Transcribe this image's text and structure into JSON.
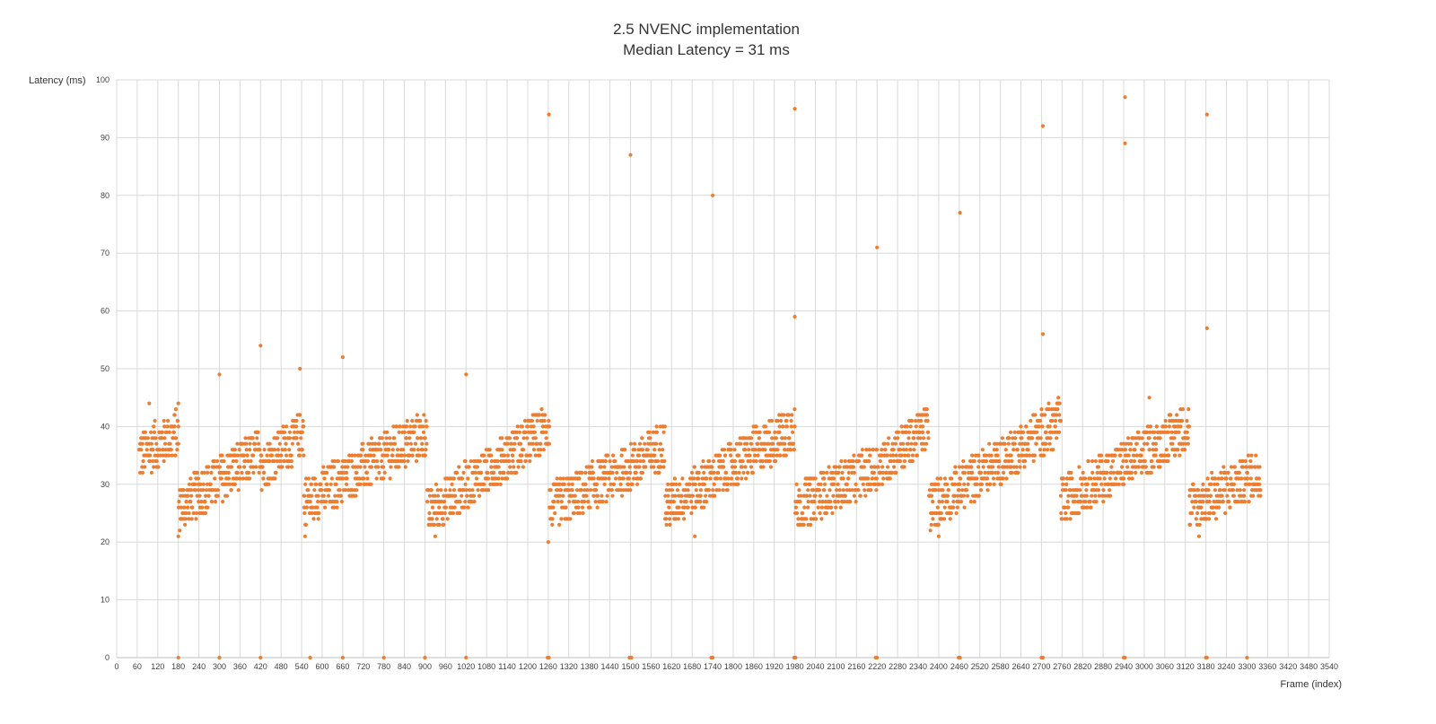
{
  "colors": {
    "marker": "#ED7D31",
    "grid": "#D9D9D9",
    "text": "#404040"
  },
  "chart_data": {
    "type": "scatter",
    "title": [
      "2.5 NVENC implementation",
      "Median Latency = 31 ms"
    ],
    "xlabel": "Frame (index)",
    "ylabel": "Latency (ms)",
    "xlim": [
      0,
      3540
    ],
    "ylim": [
      0,
      100
    ],
    "x_ticks": [
      0,
      60,
      120,
      180,
      240,
      300,
      360,
      420,
      480,
      540,
      600,
      660,
      720,
      780,
      840,
      900,
      960,
      1020,
      1080,
      1140,
      1200,
      1260,
      1320,
      1380,
      1440,
      1500,
      1560,
      1620,
      1680,
      1740,
      1800,
      1860,
      1920,
      1980,
      2040,
      2100,
      2160,
      2220,
      2280,
      2340,
      2400,
      2460,
      2520,
      2580,
      2640,
      2700,
      2760,
      2820,
      2880,
      2940,
      3000,
      3060,
      3120,
      3180,
      3240,
      3300,
      3360,
      3420,
      3480,
      3540
    ],
    "y_ticks": [
      0,
      10,
      20,
      30,
      40,
      50,
      60,
      70,
      80,
      90,
      100
    ],
    "grid": true,
    "series": [
      {
        "color": "#ED7D31",
        "summary": "Sawtooth pattern: latency rises from ~24-30 ms to ~38-44 ms in repeated cycles of roughly 240 frames, with sparse zero-latency points and outliers.",
        "cycles": [
          {
            "x0": 65,
            "x1": 180,
            "y0": 35,
            "y1": 39
          },
          {
            "x0": 181,
            "x1": 422,
            "y0": 26,
            "y1": 36
          },
          {
            "x0": 423,
            "x1": 545,
            "y0": 33,
            "y1": 39
          },
          {
            "x0": 546,
            "x1": 905,
            "y0": 27,
            "y1": 39
          },
          {
            "x0": 906,
            "x1": 1262,
            "y0": 25,
            "y1": 40
          },
          {
            "x0": 1263,
            "x1": 1500,
            "y0": 26,
            "y1": 33
          },
          {
            "x0": 1501,
            "x1": 1600,
            "y0": 33,
            "y1": 37
          },
          {
            "x0": 1601,
            "x1": 1980,
            "y0": 26,
            "y1": 40
          },
          {
            "x0": 1981,
            "x1": 2220,
            "y0": 26,
            "y1": 33
          },
          {
            "x0": 2221,
            "x1": 2370,
            "y0": 33,
            "y1": 40
          },
          {
            "x0": 2371,
            "x1": 2755,
            "y0": 26,
            "y1": 41
          },
          {
            "x0": 2756,
            "x1": 3130,
            "y0": 27,
            "y1": 40
          },
          {
            "x0": 3131,
            "x1": 3340,
            "y0": 26,
            "y1": 32
          }
        ],
        "zeros": [
          180,
          300,
          420,
          565,
          660,
          780,
          900,
          1020,
          1258,
          1262,
          1497,
          1500,
          1503,
          1736,
          1740,
          1978,
          1982,
          2216,
          2220,
          2458,
          2462,
          2700,
          2704,
          2940,
          2944,
          3180,
          3183,
          3300
        ],
        "outliers": [
          {
            "x": 300,
            "y": 49
          },
          {
            "x": 420,
            "y": 54
          },
          {
            "x": 535,
            "y": 50
          },
          {
            "x": 660,
            "y": 52
          },
          {
            "x": 1020,
            "y": 49
          },
          {
            "x": 1262,
            "y": 94
          },
          {
            "x": 1500,
            "y": 87
          },
          {
            "x": 1740,
            "y": 80
          },
          {
            "x": 1980,
            "y": 95
          },
          {
            "x": 1980,
            "y": 59
          },
          {
            "x": 2220,
            "y": 71
          },
          {
            "x": 2462,
            "y": 77
          },
          {
            "x": 2704,
            "y": 92
          },
          {
            "x": 2704,
            "y": 56
          },
          {
            "x": 2944,
            "y": 97
          },
          {
            "x": 2944,
            "y": 89
          },
          {
            "x": 3183,
            "y": 94
          },
          {
            "x": 3183,
            "y": 57
          },
          {
            "x": 95,
            "y": 44
          },
          {
            "x": 180,
            "y": 44
          },
          {
            "x": 180,
            "y": 21
          },
          {
            "x": 550,
            "y": 21
          },
          {
            "x": 930,
            "y": 21
          },
          {
            "x": 1260,
            "y": 20
          },
          {
            "x": 1688,
            "y": 21
          },
          {
            "x": 2400,
            "y": 21
          },
          {
            "x": 3160,
            "y": 21
          },
          {
            "x": 3015,
            "y": 45
          }
        ]
      }
    ]
  }
}
